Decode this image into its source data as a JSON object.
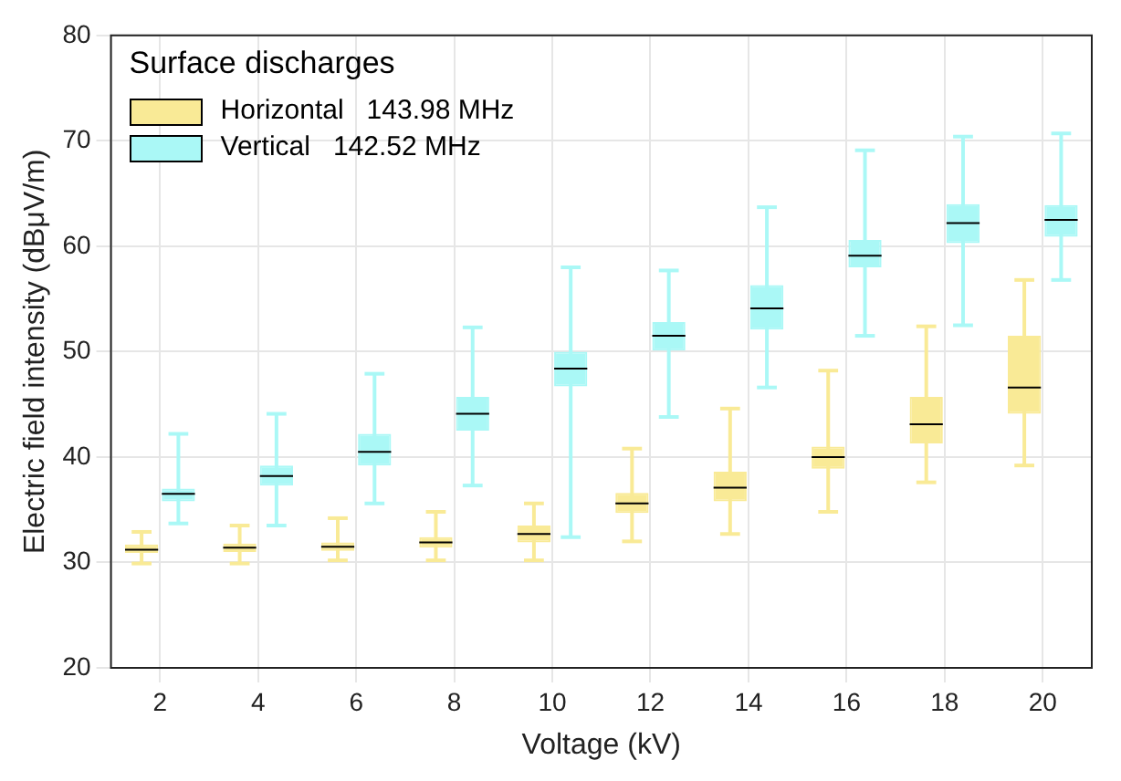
{
  "chart_data": {
    "type": "box",
    "xlabel": "Voltage (kV)",
    "ylabel": "Electric field intensity (dBμV/m)",
    "legend_title": "Surface discharges",
    "categories": [
      "2",
      "4",
      "6",
      "8",
      "10",
      "12",
      "14",
      "16",
      "18",
      "20"
    ],
    "ylim": [
      20,
      80
    ],
    "yticks": [
      20,
      30,
      40,
      50,
      60,
      70,
      80
    ],
    "grid": true,
    "legend": "top left",
    "series": [
      {
        "name": "Horizontal   143.98 MHz",
        "color": "#f9ea96",
        "boxes": [
          {
            "low": 29.9,
            "q1": 30.9,
            "median": 31.2,
            "q3": 31.7,
            "high": 32.9
          },
          {
            "low": 29.9,
            "q1": 31,
            "median": 31.4,
            "q3": 31.8,
            "high": 33.5
          },
          {
            "low": 30.2,
            "q1": 31.1,
            "median": 31.5,
            "q3": 31.9,
            "high": 34.2
          },
          {
            "low": 30.2,
            "q1": 31.4,
            "median": 31.9,
            "q3": 32.4,
            "high": 34.8
          },
          {
            "low": 30.2,
            "q1": 31.9,
            "median": 32.7,
            "q3": 33.5,
            "high": 35.6
          },
          {
            "low": 32,
            "q1": 34.7,
            "median": 35.6,
            "q3": 36.6,
            "high": 40.8
          },
          {
            "low": 32.7,
            "q1": 35.8,
            "median": 37.1,
            "q3": 38.6,
            "high": 44.6
          },
          {
            "low": 34.8,
            "q1": 38.9,
            "median": 40,
            "q3": 41,
            "high": 48.2
          },
          {
            "low": 37.6,
            "q1": 41.3,
            "median": 43.1,
            "q3": 45.7,
            "high": 52.4
          },
          {
            "low": 39.2,
            "q1": 44.1,
            "median": 46.6,
            "q3": 51.5,
            "high": 56.8
          }
        ]
      },
      {
        "name": "Vertical   142.52 MHz",
        "color": "#aaf8f6",
        "boxes": [
          {
            "low": 33.7,
            "q1": 35.8,
            "median": 36.5,
            "q3": 37,
            "high": 42.2
          },
          {
            "low": 33.5,
            "q1": 37.3,
            "median": 38.2,
            "q3": 39.2,
            "high": 44.1
          },
          {
            "low": 35.6,
            "q1": 39.2,
            "median": 40.5,
            "q3": 42.2,
            "high": 47.9
          },
          {
            "low": 37.3,
            "q1": 42.5,
            "median": 44.1,
            "q3": 45.7,
            "high": 52.3
          },
          {
            "low": 32.4,
            "q1": 46.7,
            "median": 48.4,
            "q3": 50,
            "high": 58
          },
          {
            "low": 43.8,
            "q1": 50.1,
            "median": 51.5,
            "q3": 52.8,
            "high": 57.7
          },
          {
            "low": 46.6,
            "q1": 52.1,
            "median": 54.1,
            "q3": 56.3,
            "high": 63.7
          },
          {
            "low": 51.5,
            "q1": 58,
            "median": 59.1,
            "q3": 60.6,
            "high": 69.1
          },
          {
            "low": 52.5,
            "q1": 60.3,
            "median": 62.2,
            "q3": 64,
            "high": 70.4
          },
          {
            "low": 56.8,
            "q1": 60.9,
            "median": 62.5,
            "q3": 63.9,
            "high": 70.7
          }
        ]
      }
    ]
  }
}
